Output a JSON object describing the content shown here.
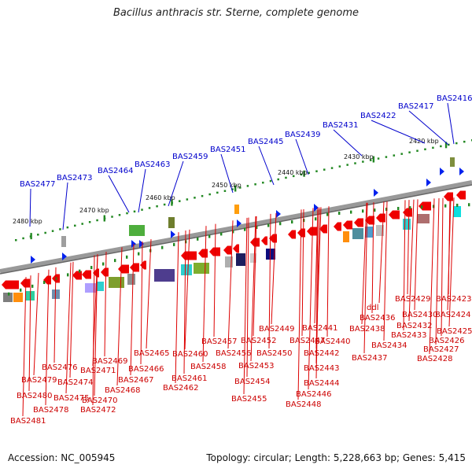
{
  "title": "Bacillus anthracis str. Sterne, complete genome",
  "footer": {
    "accession": "Accession: NC_005945",
    "summary": "Topology: circular; Length: 5,228,663 bp; Genes: 5,415"
  },
  "colors": {
    "forward_gene": "#ee0000",
    "label_top": "#0000cc",
    "label_bottom": "#cc0000",
    "backbone": "#888888",
    "tick": "#228822",
    "marker": "#0022ee"
  },
  "kbp_labels": [
    "2420 kbp",
    "2430 kbp",
    "2440 kbp",
    "2450 kbp",
    "2460 kbp",
    "2470 kbp",
    "2480 kbp"
  ],
  "top_labels": [
    "BAS2416",
    "BAS2417",
    "BAS2422",
    "BAS2431",
    "BAS2439",
    "BAS2445",
    "BAS2451",
    "BAS2459",
    "BAS2463",
    "BAS2464",
    "BAS2473",
    "BAS2477"
  ],
  "bottom_labels": [
    "BAS2423",
    "BAS2424",
    "BAS2425",
    "BAS2426",
    "BAS2427",
    "BAS2428",
    "BAS2429",
    "BAS2430",
    "BAS2432",
    "BAS2433",
    "BAS2434",
    "ddl",
    "BAS2436",
    "BAS2437",
    "BAS2438",
    "BAS2440",
    "BAS2441",
    "BAS2442",
    "BAS2443",
    "BAS2444",
    "BAS2446",
    "BAS2447",
    "BAS2448",
    "BAS2449",
    "BAS2450",
    "BAS2452",
    "BAS2453",
    "BAS2454",
    "BAS2455",
    "BAS2456",
    "BAS2457",
    "BAS2458",
    "BAS2460",
    "BAS2461",
    "BAS2462",
    "BAS2465",
    "BAS2466",
    "BAS2467",
    "BAS2468",
    "BAS2469",
    "BAS2470",
    "BAS2471",
    "BAS2472",
    "BAS2474",
    "BAS2475",
    "BAS2476",
    "BAS2478",
    "BAS2479",
    "BAS2480",
    "BAS2481"
  ]
}
